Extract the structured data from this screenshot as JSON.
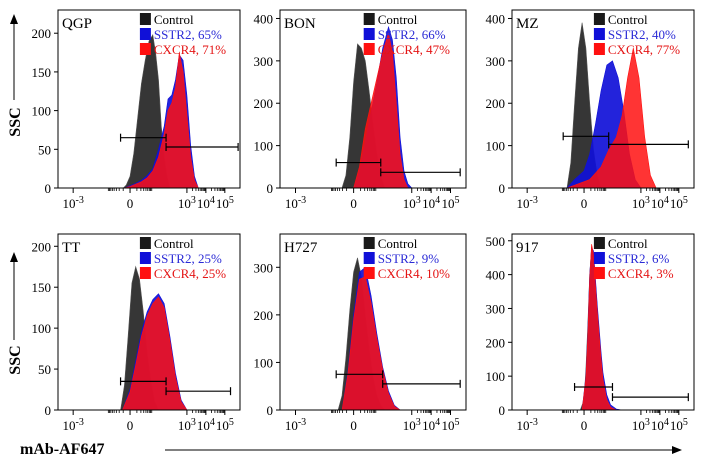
{
  "figure": {
    "y_axis_label": "SSC",
    "x_axis_label": "mAb-AF647"
  },
  "colors": {
    "control": "#1a1a1a",
    "sstr2": "#1010d8",
    "cxcr4": "#ff1010",
    "sstr2_text": "#2b2bd6",
    "cxcr4_text": "#e41414"
  },
  "chart_data": [
    {
      "type": "area",
      "panel": "QGP",
      "legend": [
        "Control",
        "SSTR2, 65%",
        "CXCR4, 71%"
      ],
      "ylim": [
        0,
        230
      ],
      "yticks": [
        0,
        50,
        100,
        150,
        200
      ],
      "xticks": [
        "10-3",
        "0",
        "103",
        "104",
        "105"
      ],
      "series": [
        {
          "name": "Control",
          "x": [
            -0.35,
            -0.2,
            0,
            0.2,
            0.4,
            0.6,
            0.8,
            1.0,
            1.2,
            1.35,
            1.5,
            1.65,
            1.8,
            1.95,
            2.1
          ],
          "y": [
            0,
            4,
            15,
            45,
            90,
            135,
            165,
            190,
            198,
            175,
            140,
            80,
            40,
            15,
            0
          ]
        },
        {
          "name": "SSTR2, 65%",
          "x": [
            -0.3,
            0,
            0.3,
            0.6,
            0.9,
            1.2,
            1.5,
            1.8,
            2.0,
            2.2,
            2.4,
            2.6,
            2.8,
            3.0,
            3.2,
            3.4,
            3.6
          ],
          "y": [
            0,
            3,
            6,
            10,
            16,
            25,
            50,
            80,
            115,
            120,
            140,
            172,
            165,
            120,
            55,
            15,
            0
          ]
        },
        {
          "name": "CXCR4, 71%",
          "x": [
            -0.3,
            0,
            0.3,
            0.6,
            0.9,
            1.2,
            1.5,
            1.8,
            2.0,
            2.2,
            2.4,
            2.6,
            2.8,
            3.0,
            3.2,
            3.4,
            3.6
          ],
          "y": [
            0,
            2,
            5,
            8,
            13,
            22,
            40,
            70,
            100,
            110,
            130,
            175,
            150,
            95,
            40,
            10,
            0
          ]
        }
      ],
      "gate_marker": {
        "y": 65,
        "x_from": -0.5,
        "x_to": 1.9
      },
      "gate_positive": {
        "y": 53,
        "x_from": 1.9,
        "x_to": 5.7
      }
    },
    {
      "type": "area",
      "panel": "BON",
      "legend": [
        "Control",
        "SSTR2, 66%",
        "CXCR4, 47%"
      ],
      "ylim": [
        0,
        420
      ],
      "yticks": [
        0,
        100,
        200,
        300,
        400
      ],
      "xticks": [
        "10-3",
        "0",
        "103",
        "104",
        "105"
      ],
      "series": [
        {
          "name": "Control",
          "x": [
            -0.6,
            -0.4,
            -0.2,
            0,
            0.2,
            0.4,
            0.6,
            0.8,
            1.0,
            1.2,
            1.4,
            1.6
          ],
          "y": [
            0,
            30,
            120,
            250,
            340,
            330,
            300,
            230,
            150,
            80,
            30,
            0
          ]
        },
        {
          "name": "SSTR2, 66%",
          "x": [
            0,
            0.3,
            0.6,
            0.9,
            1.2,
            1.5,
            1.8,
            2.0,
            2.2,
            2.4,
            2.6,
            2.8,
            3.0
          ],
          "y": [
            0,
            40,
            110,
            180,
            250,
            330,
            380,
            350,
            260,
            120,
            40,
            10,
            0
          ]
        },
        {
          "name": "CXCR4, 47%",
          "x": [
            0,
            0.3,
            0.6,
            0.9,
            1.2,
            1.5,
            1.8,
            2.0,
            2.2,
            2.4,
            2.6,
            2.8
          ],
          "y": [
            0,
            50,
            140,
            200,
            260,
            320,
            365,
            320,
            200,
            80,
            20,
            0
          ]
        }
      ],
      "gate_marker": {
        "y": 60,
        "x_from": -0.9,
        "x_to": 1.4
      },
      "gate_positive": {
        "y": 37,
        "x_from": 1.4,
        "x_to": 5.5
      }
    },
    {
      "type": "area",
      "panel": "MZ",
      "legend": [
        "Control",
        "SSTR2, 40%",
        "CXCR4, 77%"
      ],
      "ylim": [
        0,
        420
      ],
      "yticks": [
        0,
        100,
        200,
        300,
        400
      ],
      "xticks": [
        "10-3",
        "0",
        "103",
        "104",
        "105"
      ],
      "series": [
        {
          "name": "Control",
          "x": [
            -0.9,
            -0.7,
            -0.5,
            -0.3,
            -0.1,
            0.1,
            0.3,
            0.5,
            0.7,
            0.9
          ],
          "y": [
            0,
            60,
            200,
            330,
            390,
            330,
            200,
            90,
            30,
            0
          ]
        },
        {
          "name": "SSTR2, 40%",
          "x": [
            -0.9,
            -0.5,
            0,
            0.3,
            0.6,
            0.9,
            1.2,
            1.5,
            1.8,
            2.1,
            2.4,
            2.7,
            3.0
          ],
          "y": [
            0,
            20,
            40,
            80,
            150,
            230,
            290,
            300,
            260,
            180,
            80,
            20,
            0
          ]
        },
        {
          "name": "CXCR4, 77%",
          "x": [
            -0.9,
            -0.3,
            0.3,
            0.9,
            1.3,
            1.7,
            2.0,
            2.3,
            2.6,
            2.9,
            3.2,
            3.5,
            3.8
          ],
          "y": [
            0,
            10,
            20,
            50,
            90,
            120,
            170,
            260,
            330,
            260,
            120,
            30,
            0
          ]
        }
      ],
      "gate_marker": {
        "y": 122,
        "x_from": -1.1,
        "x_to": 1.3
      },
      "gate_positive": {
        "y": 103,
        "x_from": 1.3,
        "x_to": 5.5
      }
    },
    {
      "type": "area",
      "panel": "TT",
      "legend": [
        "Control",
        "SSTR2, 25%",
        "CXCR4, 25%"
      ],
      "ylim": [
        0,
        215
      ],
      "yticks": [
        0,
        50,
        100,
        150,
        200
      ],
      "xticks": [
        "10-3",
        "0",
        "103",
        "104",
        "105"
      ],
      "series": [
        {
          "name": "Control",
          "x": [
            -0.5,
            -0.3,
            -0.1,
            0.1,
            0.3,
            0.5,
            0.7,
            0.9,
            1.1,
            1.3,
            1.5
          ],
          "y": [
            0,
            30,
            90,
            155,
            175,
            160,
            120,
            70,
            35,
            10,
            0
          ]
        },
        {
          "name": "SSTR2, 25%",
          "x": [
            -0.4,
            0,
            0.3,
            0.6,
            0.9,
            1.2,
            1.5,
            1.8,
            2.1,
            2.4,
            2.7,
            3.0
          ],
          "y": [
            0,
            25,
            60,
            95,
            120,
            135,
            142,
            130,
            90,
            45,
            12,
            0
          ]
        },
        {
          "name": "CXCR4, 25%",
          "x": [
            -0.4,
            0,
            0.3,
            0.6,
            0.9,
            1.2,
            1.5,
            1.8,
            2.1,
            2.4,
            2.7,
            3.0
          ],
          "y": [
            0,
            22,
            55,
            90,
            115,
            130,
            138,
            125,
            85,
            40,
            10,
            0
          ]
        }
      ],
      "gate_marker": {
        "y": 35,
        "x_from": -0.5,
        "x_to": 1.9
      },
      "gate_positive": {
        "y": 23,
        "x_from": 1.9,
        "x_to": 5.3
      }
    },
    {
      "type": "area",
      "panel": "H727",
      "legend": [
        "Control",
        "SSTR2, 9%",
        "CXCR4, 10%"
      ],
      "ylim": [
        0,
        370
      ],
      "yticks": [
        0,
        100,
        200,
        300
      ],
      "xticks": [
        "10-3",
        "0",
        "103",
        "104",
        "105"
      ],
      "series": [
        {
          "name": "Control",
          "x": [
            -0.8,
            -0.6,
            -0.4,
            -0.2,
            0,
            0.2,
            0.4,
            0.6,
            0.8,
            1.0,
            1.2,
            1.4,
            1.6
          ],
          "y": [
            0,
            30,
            110,
            210,
            290,
            320,
            280,
            200,
            130,
            70,
            30,
            10,
            0
          ]
        },
        {
          "name": "SSTR2, 9%",
          "x": [
            -0.6,
            -0.3,
            0,
            0.3,
            0.6,
            0.9,
            1.2,
            1.5,
            1.8,
            2.1,
            2.4
          ],
          "y": [
            0,
            80,
            200,
            290,
            300,
            240,
            160,
            90,
            40,
            10,
            0
          ]
        },
        {
          "name": "CXCR4, 10%",
          "x": [
            -0.6,
            -0.3,
            0,
            0.3,
            0.6,
            0.9,
            1.2,
            1.5,
            1.8,
            2.1,
            2.4
          ],
          "y": [
            0,
            75,
            190,
            275,
            280,
            225,
            150,
            85,
            35,
            8,
            0
          ]
        }
      ],
      "gate_marker": {
        "y": 75,
        "x_from": -0.9,
        "x_to": 1.5
      },
      "gate_positive": {
        "y": 55,
        "x_from": 1.5,
        "x_to": 5.5
      }
    },
    {
      "type": "area",
      "panel": "917",
      "legend": [
        "Control",
        "SSTR2, 6%",
        "CXCR4, 3%"
      ],
      "ylim": [
        0,
        520
      ],
      "yticks": [
        0,
        100,
        200,
        300,
        400,
        500
      ],
      "xticks": [
        "10-3",
        "0",
        "103",
        "104",
        "105"
      ],
      "series": [
        {
          "name": "Control",
          "x": [
            -0.2,
            0,
            0.1,
            0.2,
            0.3,
            0.4,
            0.5,
            0.6,
            0.7,
            0.8,
            0.9,
            1.0,
            1.2,
            1.4,
            1.6
          ],
          "y": [
            0,
            30,
            120,
            250,
            400,
            480,
            460,
            380,
            300,
            220,
            140,
            80,
            25,
            5,
            0
          ]
        },
        {
          "name": "SSTR2, 6%",
          "x": [
            -0.1,
            0.1,
            0.2,
            0.3,
            0.4,
            0.5,
            0.6,
            0.7,
            0.8,
            0.9,
            1.0,
            1.2,
            1.4,
            1.7,
            2.0
          ],
          "y": [
            0,
            100,
            230,
            400,
            480,
            470,
            390,
            310,
            240,
            170,
            110,
            45,
            15,
            3,
            0
          ]
        },
        {
          "name": "CXCR4, 3%",
          "x": [
            -0.1,
            0.1,
            0.2,
            0.3,
            0.4,
            0.5,
            0.6,
            0.7,
            0.8,
            0.9,
            1.0,
            1.2,
            1.4,
            1.7
          ],
          "y": [
            0,
            95,
            220,
            390,
            490,
            460,
            370,
            290,
            220,
            150,
            90,
            30,
            8,
            0
          ]
        }
      ],
      "gate_marker": {
        "y": 68,
        "x_from": -0.5,
        "x_to": 1.5
      },
      "gate_positive": {
        "y": 38,
        "x_from": 1.5,
        "x_to": 5.5
      }
    }
  ]
}
